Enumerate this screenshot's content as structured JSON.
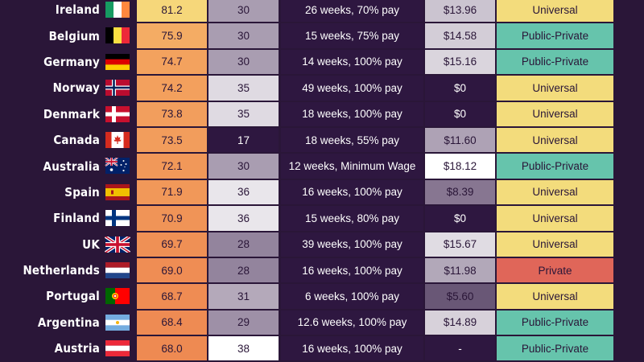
{
  "rows": [
    {
      "country": "Ireland",
      "flag": "ireland-flag",
      "score": "81.2",
      "hours": "30",
      "leave": "26 weeks, 70% pay",
      "wage": "$13.96",
      "healthcare": "Universal"
    },
    {
      "country": "Belgium",
      "flag": "belgium-flag",
      "score": "75.9",
      "hours": "30",
      "leave": "15 weeks, 75% pay",
      "wage": "$14.58",
      "healthcare": "Public-Private"
    },
    {
      "country": "Germany",
      "flag": "germany-flag",
      "score": "74.7",
      "hours": "30",
      "leave": "14 weeks, 100% pay",
      "wage": "$15.16",
      "healthcare": "Public-Private"
    },
    {
      "country": "Norway",
      "flag": "norway-flag",
      "score": "74.2",
      "hours": "35",
      "leave": "49 weeks, 100% pay",
      "wage": "$0",
      "healthcare": "Universal"
    },
    {
      "country": "Denmark",
      "flag": "denmark-flag",
      "score": "73.8",
      "hours": "35",
      "leave": "18 weeks, 100% pay",
      "wage": "$0",
      "healthcare": "Universal"
    },
    {
      "country": "Canada",
      "flag": "canada-flag",
      "score": "73.5",
      "hours": "17",
      "leave": "18 weeks, 55% pay",
      "wage": "$11.60",
      "healthcare": "Universal"
    },
    {
      "country": "Australia",
      "flag": "australia-flag",
      "score": "72.1",
      "hours": "30",
      "leave": "12 weeks, Minimum Wage",
      "wage": "$18.12",
      "healthcare": "Public-Private"
    },
    {
      "country": "Spain",
      "flag": "spain-flag",
      "score": "71.9",
      "hours": "36",
      "leave": "16 weeks, 100% pay",
      "wage": "$8.39",
      "healthcare": "Universal"
    },
    {
      "country": "Finland",
      "flag": "finland-flag",
      "score": "70.9",
      "hours": "36",
      "leave": "15 weeks, 80% pay",
      "wage": "$0",
      "healthcare": "Universal"
    },
    {
      "country": "UK",
      "flag": "uk-flag",
      "score": "69.7",
      "hours": "28",
      "leave": "39 weeks, 100% pay",
      "wage": "$15.67",
      "healthcare": "Universal"
    },
    {
      "country": "Netherlands",
      "flag": "netherlands-flag",
      "score": "69.0",
      "hours": "28",
      "leave": "16 weeks, 100% pay",
      "wage": "$11.98",
      "healthcare": "Private"
    },
    {
      "country": "Portugal",
      "flag": "portugal-flag",
      "score": "68.7",
      "hours": "31",
      "leave": "6 weeks, 100% pay",
      "wage": "$5.60",
      "healthcare": "Universal"
    },
    {
      "country": "Argentina",
      "flag": "argentina-flag",
      "score": "68.4",
      "hours": "29",
      "leave": "12.6 weeks, 100% pay",
      "wage": "$14.89",
      "healthcare": "Public-Private"
    },
    {
      "country": "Austria",
      "flag": "austria-flag",
      "score": "68.0",
      "hours": "38",
      "leave": "16 weeks, 100% pay",
      "wage": "-",
      "healthcare": "Public-Private"
    }
  ],
  "colors": {
    "background": "#2a1638",
    "score_scale": [
      "#f6d77a",
      "#f3a15e",
      "#ee8a52"
    ],
    "hours_scale": [
      "#2e1740",
      "#8e7e98",
      "#ffffff"
    ],
    "wage_scale": [
      "#2e1740",
      "#8e7e98",
      "#ffffff"
    ],
    "healthcare": {
      "Universal": "#f3dc7c",
      "Public-Private": "#66c4ac",
      "Private": "#e06659"
    }
  }
}
